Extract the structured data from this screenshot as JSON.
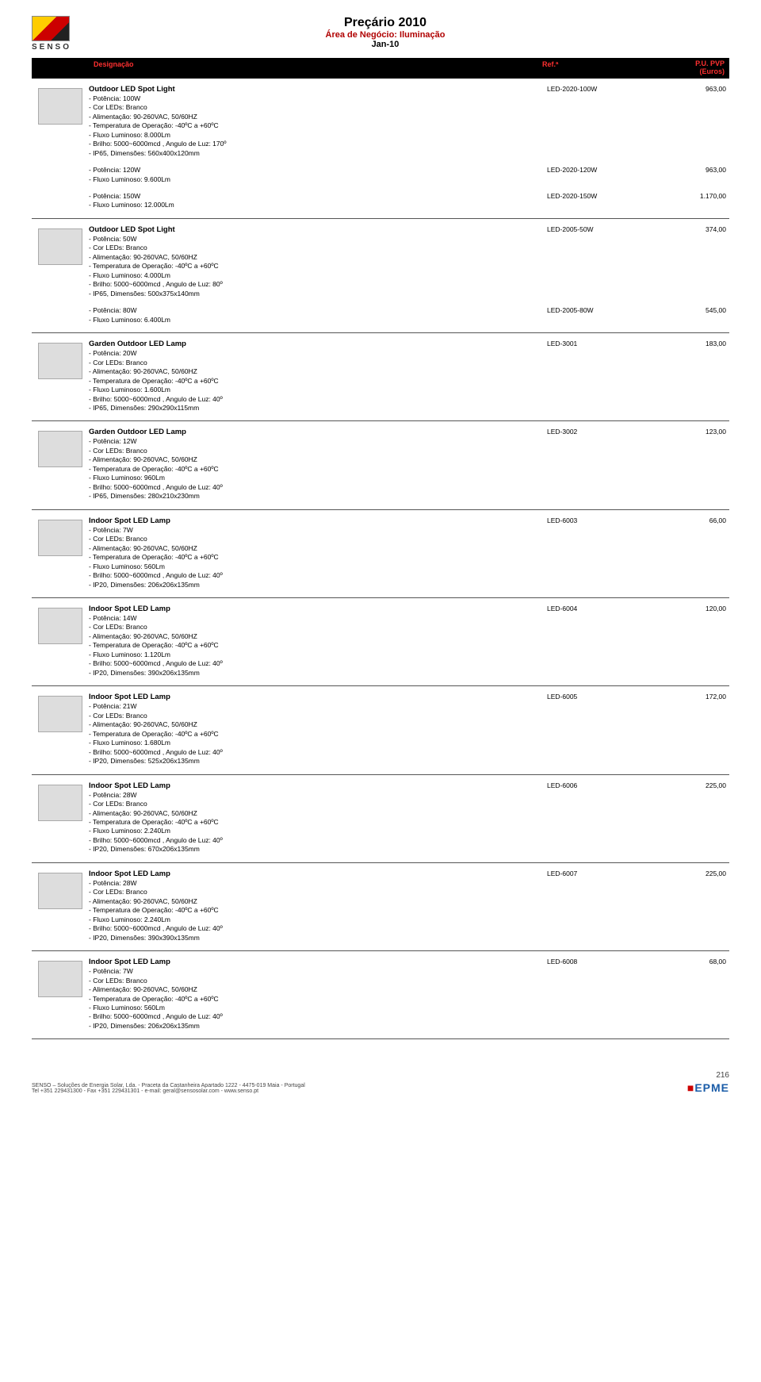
{
  "header": {
    "brand": "SENSO",
    "title": "Preçário 2010",
    "subtitle": "Área de Negócio: Iluminação",
    "date": "Jan-10"
  },
  "columns": {
    "designacao": "Designação",
    "ref": "Ref.ª",
    "pvp_line1": "P.U. PVP",
    "pvp_line2": "(Euros)"
  },
  "products": [
    {
      "thumb": "floodlight",
      "title": "Outdoor LED Spot Light",
      "specs": [
        "- Potência: 100W",
        "- Cor LEDs: Branco",
        "- Alimentação: 90-260VAC, 50/60HZ",
        "- Temperatura de Operação: -40ºC a +60ºC",
        "- Fluxo Luminoso: 8.000Lm",
        "- Brilho: 5000~6000mcd , Angulo de Luz: 170º",
        "- IP65, Dimensões: 560x400x120mm"
      ],
      "ref": "LED-2020-100W",
      "price": "963,00",
      "variants": [
        {
          "specs": [
            "- Potência: 120W",
            "- Fluxo Luminoso: 9.600Lm"
          ],
          "ref": "LED-2020-120W",
          "price": "963,00"
        },
        {
          "specs": [
            "- Potência: 150W",
            "- Fluxo Luminoso: 12.000Lm"
          ],
          "ref": "LED-2020-150W",
          "price": "1.170,00"
        }
      ]
    },
    {
      "thumb": "spot-black",
      "title": "Outdoor LED Spot Light",
      "specs": [
        "- Potência: 50W",
        "- Cor LEDs: Branco",
        "- Alimentação: 90-260VAC, 50/60HZ",
        "- Temperatura de Operação: -40ºC a +60ºC",
        "- Fluxo Luminoso: 4.000Lm",
        "- Brilho: 5000~6000mcd , Angulo de Luz: 80º",
        "- IP65, Dimensões: 500x375x140mm"
      ],
      "ref": "LED-2005-50W",
      "price": "374,00",
      "variants": [
        {
          "specs": [
            "- Potência: 80W",
            "- Fluxo Luminoso: 6.400Lm"
          ],
          "ref": "LED-2005-80W",
          "price": "545,00"
        }
      ]
    },
    {
      "thumb": "garden-1",
      "title": "Garden Outdoor LED Lamp",
      "specs": [
        "- Potência: 20W",
        "- Cor LEDs: Branco",
        "- Alimentação: 90-260VAC, 50/60HZ",
        "- Temperatura de Operação: -40ºC a +60ºC",
        "- Fluxo Luminoso: 1.600Lm",
        "- Brilho: 5000~6000mcd , Angulo de Luz: 40º",
        "- IP65, Dimensões: 290x290x115mm"
      ],
      "ref": "LED-3001",
      "price": "183,00",
      "variants": []
    },
    {
      "thumb": "garden-2",
      "title": "Garden Outdoor LED Lamp",
      "specs": [
        "- Potência: 12W",
        "- Cor LEDs: Branco",
        "- Alimentação: 90-260VAC, 50/60HZ",
        "- Temperatura de Operação: -40ºC a +60ºC",
        "- Fluxo Luminoso: 960Lm",
        "- Brilho: 5000~6000mcd , Angulo de Luz: 40º",
        "- IP65, Dimensões: 280x210x230mm"
      ],
      "ref": "LED-3002",
      "price": "123,00",
      "variants": []
    },
    {
      "thumb": "indoor-1",
      "title": "Indoor Spot LED Lamp",
      "specs": [
        "- Potência: 7W",
        "- Cor LEDs: Branco",
        "- Alimentação: 90-260VAC, 50/60HZ",
        "- Temperatura de Operação: -40ºC a +60ºC",
        "- Fluxo Luminoso: 560Lm",
        "- Brilho: 5000~6000mcd , Angulo de Luz: 40º",
        "- IP20, Dimensões: 206x206x135mm"
      ],
      "ref": "LED-6003",
      "price": "66,00",
      "variants": []
    },
    {
      "thumb": "indoor-2",
      "title": "Indoor Spot LED Lamp",
      "specs": [
        "- Potência: 14W",
        "- Cor LEDs: Branco",
        "- Alimentação: 90-260VAC, 50/60HZ",
        "- Temperatura de Operação: -40ºC a +60ºC",
        "- Fluxo Luminoso: 1.120Lm",
        "- Brilho: 5000~6000mcd , Angulo de Luz: 40º",
        "- IP20, Dimensões: 390x206x135mm"
      ],
      "ref": "LED-6004",
      "price": "120,00",
      "variants": []
    },
    {
      "thumb": "indoor-3",
      "title": "Indoor Spot LED Lamp",
      "specs": [
        "- Potência: 21W",
        "- Cor LEDs: Branco",
        "- Alimentação: 90-260VAC, 50/60HZ",
        "- Temperatura de Operação: -40ºC a +60ºC",
        "- Fluxo Luminoso: 1.680Lm",
        "- Brilho: 5000~6000mcd , Angulo de Luz: 40º",
        "- IP20, Dimensões: 525x206x135mm"
      ],
      "ref": "LED-6005",
      "price": "172,00",
      "variants": []
    },
    {
      "thumb": "indoor-4",
      "title": "Indoor Spot LED Lamp",
      "specs": [
        "- Potência: 28W",
        "- Cor LEDs: Branco",
        "- Alimentação: 90-260VAC, 50/60HZ",
        "- Temperatura de Operação: -40ºC a +60ºC",
        "- Fluxo Luminoso: 2.240Lm",
        "- Brilho: 5000~6000mcd , Angulo de Luz: 40º",
        "- IP20, Dimensões: 670x206x135mm"
      ],
      "ref": "LED-6006",
      "price": "225,00",
      "variants": []
    },
    {
      "thumb": "indoor-5",
      "title": "Indoor Spot LED Lamp",
      "specs": [
        "- Potência: 28W",
        "- Cor LEDs: Branco",
        "- Alimentação: 90-260VAC, 50/60HZ",
        "- Temperatura de Operação: -40ºC a +60ºC",
        "- Fluxo Luminoso: 2.240Lm",
        "- Brilho: 5000~6000mcd , Angulo de Luz: 40º",
        "- IP20, Dimensões: 390x390x135mm"
      ],
      "ref": "LED-6007",
      "price": "225,00",
      "variants": []
    },
    {
      "thumb": "indoor-6",
      "title": "Indoor Spot LED Lamp",
      "specs": [
        "- Potência: 7W",
        "- Cor LEDs: Branco",
        "- Alimentação: 90-260VAC, 50/60HZ",
        "- Temperatura de Operação: -40ºC a +60ºC",
        "- Fluxo Luminoso: 560Lm",
        "- Brilho: 5000~6000mcd , Angulo de Luz: 40º",
        "- IP20, Dimensões: 206x206x135mm"
      ],
      "ref": "LED-6008",
      "price": "68,00",
      "variants": []
    }
  ],
  "footer": {
    "left": "SENSO – Soluções de Energia Solar, Lda. - Praceta da Castanheira Apartado 1222 - 4475-019 Maia - Portugal\nTel +351 229431300 - Fax +351 229431301 - e-mail: geral@sensosolar.com - www.senso.pt",
    "page": "216",
    "partner": "EPME"
  }
}
